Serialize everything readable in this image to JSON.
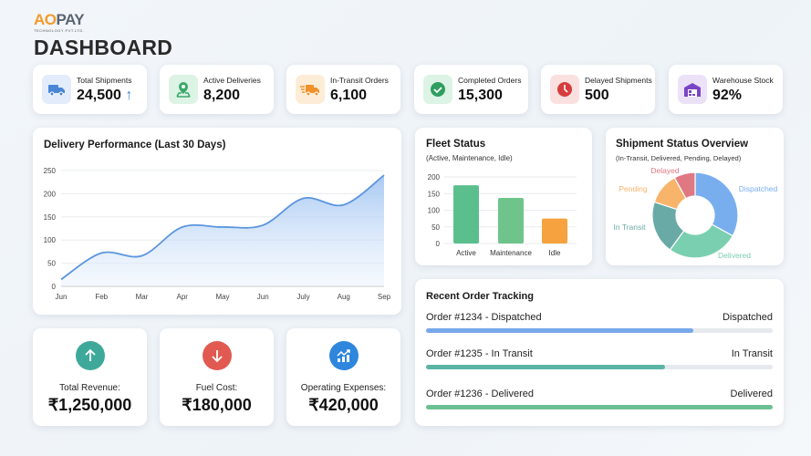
{
  "logo": {
    "brand": "AOPAY",
    "subtitle": "TECHNOLOGY PVT.LTD."
  },
  "page_title": "DASHBOARD",
  "kpis": [
    {
      "label": "Total Shipments",
      "value": "24,500",
      "trend": "up",
      "icon": "truck-icon",
      "color": "#4a86d6",
      "bg": "#e2ecfa"
    },
    {
      "label": "Active Deliveries",
      "value": "8,200",
      "icon": "map-pin-icon",
      "color": "#3aa86b",
      "bg": "#dcf3e5"
    },
    {
      "label": "In-Transit Orders",
      "value": "6,100",
      "icon": "fast-truck-icon",
      "color": "#f0922b",
      "bg": "#fdecd6"
    },
    {
      "label": "Completed Orders",
      "value": "15,300",
      "icon": "check-circle-icon",
      "color": "#2f9e5e",
      "bg": "#dcf3e5"
    },
    {
      "label": "Delayed Shipments",
      "value": "500",
      "icon": "clock-icon",
      "color": "#d63c3c",
      "bg": "#fbe0e0"
    },
    {
      "label": "Warehouse Stock",
      "value": "92%",
      "icon": "warehouse-icon",
      "color": "#7a45c4",
      "bg": "#ece2f8"
    }
  ],
  "chart_data": [
    {
      "type": "area",
      "title": "Delivery Performance (Last 30 Days)",
      "categories": [
        "Jun",
        "Feb",
        "Mar",
        "Apr",
        "May",
        "Jun",
        "July",
        "Aug",
        "Sep"
      ],
      "values": [
        15,
        72,
        66,
        128,
        128,
        132,
        190,
        176,
        240
      ],
      "ylim": [
        0,
        250
      ],
      "yticks": [
        0,
        50,
        100,
        150,
        200,
        250
      ],
      "grid": true,
      "color": "#5b95e0"
    },
    {
      "type": "bar",
      "title": "Fleet Status",
      "subtitle": "(Active, Maintenance, Idle)",
      "categories": [
        "Active",
        "Maintenance",
        "Idle"
      ],
      "values": [
        175,
        137,
        75
      ],
      "colors": [
        "#5bbf8d",
        "#6ec48a",
        "#f6a23e"
      ],
      "ylim": [
        0,
        200
      ],
      "yticks": [
        0,
        50,
        100,
        150,
        200
      ],
      "grid": true
    },
    {
      "type": "pie",
      "title": "Shipment Status Overview",
      "subtitle": "(In-Transit, Delivered, Pending, Delayed)",
      "labels": [
        "Dispatched",
        "Delivered",
        "In Transit",
        "Pending",
        "Delayed"
      ],
      "values": [
        33,
        27,
        20,
        12,
        8
      ],
      "colors": [
        "#78aeee",
        "#7acfb0",
        "#6aaaa6",
        "#f8b46a",
        "#e07882"
      ]
    }
  ],
  "finance": [
    {
      "label": "Total Revenue:",
      "value": "₹1,250,000",
      "icon": "arrow-up-icon",
      "color": "#3ea99a"
    },
    {
      "label": "Fuel Cost:",
      "value": "₹180,000",
      "icon": "arrow-down-icon",
      "color": "#e05a52"
    },
    {
      "label": "Operating Expenses:",
      "value": "₹420,000",
      "icon": "chart-up-icon",
      "color": "#2f86dd"
    }
  ],
  "orders": {
    "title": "Recent Order Tracking",
    "items": [
      {
        "name": "Order #1234 - Dispatched",
        "status": "Dispatched",
        "progress": 77,
        "color": "#78a8ea"
      },
      {
        "name": "Order #1235 - In Transit",
        "status": "In Transit",
        "progress": 69,
        "color": "#5bb5a5"
      },
      {
        "name": "Order #1236 - Delivered",
        "status": "Delivered",
        "progress": 100,
        "color": "#6cc194"
      }
    ]
  }
}
